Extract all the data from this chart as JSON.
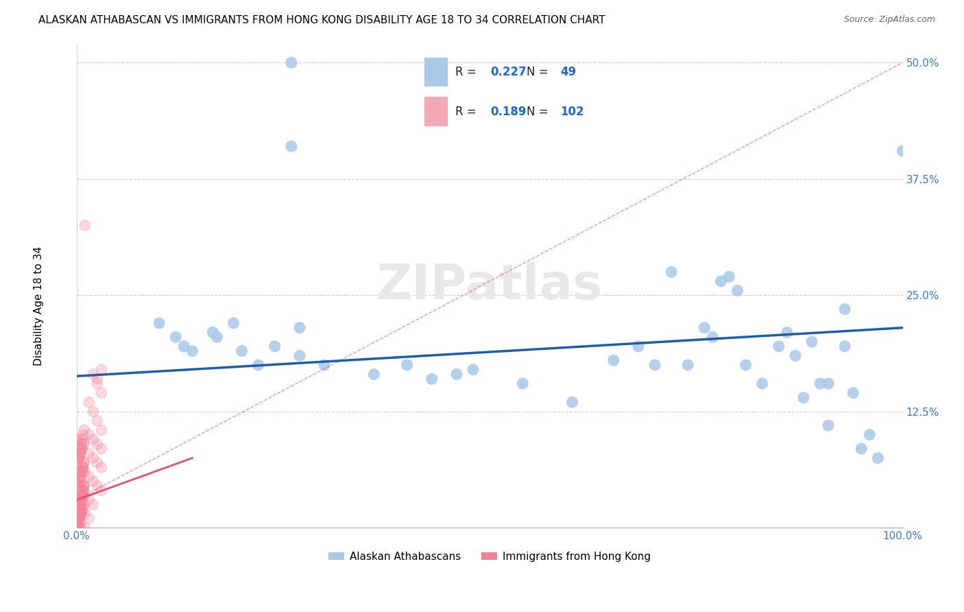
{
  "title": "ALASKAN ATHABASCAN VS IMMIGRANTS FROM HONG KONG DISABILITY AGE 18 TO 34 CORRELATION CHART",
  "source": "Source: ZipAtlas.com",
  "ylabel": "Disability Age 18 to 34",
  "xlim": [
    0.0,
    1.0
  ],
  "ylim": [
    0.0,
    0.52
  ],
  "ytick_vals": [
    0.0,
    0.125,
    0.25,
    0.375,
    0.5
  ],
  "ytick_labels": [
    "",
    "12.5%",
    "25.0%",
    "37.5%",
    "50.0%"
  ],
  "legend": {
    "r1": 0.227,
    "n1": 49,
    "r2": 0.189,
    "n2": 102,
    "color1": "#aac8e8",
    "color2": "#f4a8b8"
  },
  "blue_scatter": [
    [
      0.26,
      0.5
    ],
    [
      0.26,
      0.41
    ],
    [
      0.1,
      0.22
    ],
    [
      0.12,
      0.205
    ],
    [
      0.13,
      0.195
    ],
    [
      0.14,
      0.19
    ],
    [
      0.165,
      0.21
    ],
    [
      0.17,
      0.205
    ],
    [
      0.19,
      0.22
    ],
    [
      0.2,
      0.19
    ],
    [
      0.22,
      0.175
    ],
    [
      0.24,
      0.195
    ],
    [
      0.27,
      0.215
    ],
    [
      0.27,
      0.185
    ],
    [
      0.3,
      0.175
    ],
    [
      0.36,
      0.165
    ],
    [
      0.4,
      0.175
    ],
    [
      0.43,
      0.16
    ],
    [
      0.46,
      0.165
    ],
    [
      0.48,
      0.17
    ],
    [
      0.54,
      0.155
    ],
    [
      0.6,
      0.135
    ],
    [
      0.65,
      0.18
    ],
    [
      0.68,
      0.195
    ],
    [
      0.7,
      0.175
    ],
    [
      0.72,
      0.275
    ],
    [
      0.74,
      0.175
    ],
    [
      0.76,
      0.215
    ],
    [
      0.77,
      0.205
    ],
    [
      0.78,
      0.265
    ],
    [
      0.79,
      0.27
    ],
    [
      0.8,
      0.255
    ],
    [
      0.81,
      0.175
    ],
    [
      0.83,
      0.155
    ],
    [
      0.85,
      0.195
    ],
    [
      0.86,
      0.21
    ],
    [
      0.87,
      0.185
    ],
    [
      0.88,
      0.14
    ],
    [
      0.89,
      0.2
    ],
    [
      0.9,
      0.155
    ],
    [
      0.91,
      0.155
    ],
    [
      0.91,
      0.11
    ],
    [
      0.93,
      0.235
    ],
    [
      0.93,
      0.195
    ],
    [
      0.94,
      0.145
    ],
    [
      0.95,
      0.085
    ],
    [
      0.96,
      0.1
    ],
    [
      0.97,
      0.075
    ],
    [
      1.0,
      0.405
    ]
  ],
  "pink_scatter": [
    [
      0.01,
      0.325
    ],
    [
      0.02,
      0.165
    ],
    [
      0.025,
      0.155
    ],
    [
      0.03,
      0.145
    ],
    [
      0.015,
      0.135
    ],
    [
      0.02,
      0.125
    ],
    [
      0.025,
      0.115
    ],
    [
      0.03,
      0.105
    ],
    [
      0.015,
      0.1
    ],
    [
      0.02,
      0.095
    ],
    [
      0.025,
      0.09
    ],
    [
      0.03,
      0.085
    ],
    [
      0.015,
      0.08
    ],
    [
      0.02,
      0.075
    ],
    [
      0.025,
      0.07
    ],
    [
      0.03,
      0.065
    ],
    [
      0.01,
      0.06
    ],
    [
      0.015,
      0.055
    ],
    [
      0.02,
      0.05
    ],
    [
      0.025,
      0.045
    ],
    [
      0.03,
      0.04
    ],
    [
      0.01,
      0.035
    ],
    [
      0.015,
      0.03
    ],
    [
      0.02,
      0.025
    ],
    [
      0.005,
      0.02
    ],
    [
      0.01,
      0.015
    ],
    [
      0.015,
      0.01
    ],
    [
      0.005,
      0.005
    ],
    [
      0.01,
      0.0
    ],
    [
      0.005,
      0.0
    ],
    [
      0.003,
      0.0
    ],
    [
      0.002,
      0.0
    ],
    [
      0.001,
      0.0
    ],
    [
      0.003,
      0.005
    ],
    [
      0.002,
      0.01
    ],
    [
      0.004,
      0.015
    ],
    [
      0.005,
      0.02
    ],
    [
      0.006,
      0.025
    ],
    [
      0.007,
      0.03
    ],
    [
      0.008,
      0.035
    ],
    [
      0.009,
      0.04
    ],
    [
      0.004,
      0.045
    ],
    [
      0.005,
      0.05
    ],
    [
      0.006,
      0.055
    ],
    [
      0.007,
      0.06
    ],
    [
      0.008,
      0.065
    ],
    [
      0.009,
      0.07
    ],
    [
      0.003,
      0.075
    ],
    [
      0.004,
      0.08
    ],
    [
      0.005,
      0.085
    ],
    [
      0.006,
      0.09
    ],
    [
      0.007,
      0.095
    ],
    [
      0.008,
      0.1
    ],
    [
      0.009,
      0.105
    ],
    [
      0.002,
      0.01
    ],
    [
      0.003,
      0.015
    ],
    [
      0.004,
      0.02
    ],
    [
      0.005,
      0.025
    ],
    [
      0.006,
      0.03
    ],
    [
      0.007,
      0.035
    ],
    [
      0.008,
      0.04
    ],
    [
      0.009,
      0.045
    ],
    [
      0.001,
      0.005
    ],
    [
      0.002,
      0.005
    ],
    [
      0.003,
      0.01
    ],
    [
      0.004,
      0.01
    ],
    [
      0.005,
      0.015
    ],
    [
      0.006,
      0.015
    ],
    [
      0.007,
      0.02
    ],
    [
      0.008,
      0.02
    ],
    [
      0.009,
      0.025
    ],
    [
      0.001,
      0.025
    ],
    [
      0.002,
      0.03
    ],
    [
      0.003,
      0.03
    ],
    [
      0.004,
      0.035
    ],
    [
      0.005,
      0.035
    ],
    [
      0.006,
      0.04
    ],
    [
      0.007,
      0.04
    ],
    [
      0.008,
      0.045
    ],
    [
      0.009,
      0.045
    ],
    [
      0.001,
      0.05
    ],
    [
      0.002,
      0.05
    ],
    [
      0.003,
      0.055
    ],
    [
      0.004,
      0.055
    ],
    [
      0.005,
      0.06
    ],
    [
      0.006,
      0.06
    ],
    [
      0.007,
      0.065
    ],
    [
      0.008,
      0.065
    ],
    [
      0.009,
      0.07
    ],
    [
      0.001,
      0.07
    ],
    [
      0.002,
      0.075
    ],
    [
      0.003,
      0.075
    ],
    [
      0.004,
      0.08
    ],
    [
      0.005,
      0.08
    ],
    [
      0.006,
      0.085
    ],
    [
      0.007,
      0.085
    ],
    [
      0.008,
      0.09
    ],
    [
      0.009,
      0.09
    ],
    [
      0.001,
      0.095
    ],
    [
      0.002,
      0.095
    ],
    [
      0.025,
      0.16
    ],
    [
      0.03,
      0.17
    ]
  ],
  "blue_line": {
    "x0": 0.0,
    "y0": 0.163,
    "x1": 1.0,
    "y1": 0.215
  },
  "pink_line_solid": {
    "x0": 0.0,
    "y0": 0.03,
    "x1": 0.14,
    "y1": 0.075
  },
  "pink_line_dashed": {
    "x0": 0.0,
    "y0": 0.03,
    "x1": 1.0,
    "y1": 0.5
  },
  "bg_color": "#ffffff",
  "scatter_blue_color": "#aac8e8",
  "scatter_pink_color": "#f48098",
  "line_blue_color": "#1a5fa8",
  "line_pink_color": "#e05070",
  "watermark_text": "ZIPatlas",
  "watermark_color": "#e8e8e8",
  "title_fontsize": 11,
  "source_fontsize": 9,
  "tick_fontsize": 11
}
